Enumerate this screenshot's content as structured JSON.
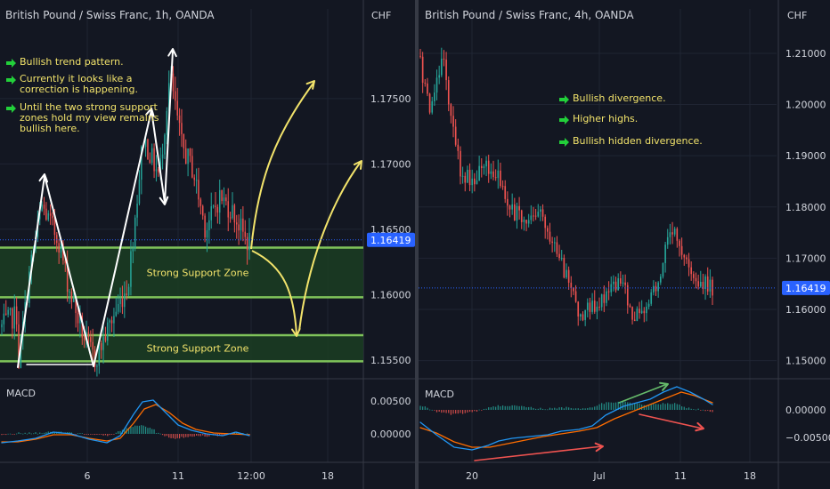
{
  "colors": {
    "background": "#131722",
    "grid": "#1f2533",
    "divider": "#363a45",
    "text": "#d1d4dc",
    "up": "#26a69a",
    "down": "#ef5350",
    "zone_line": "#7fc35a",
    "zone_fill": "#1b3b22",
    "note_text": "#f2e36b",
    "note_arrow": "#22d03a",
    "projection": "#f2e36b",
    "white_arrow": "#ffffff",
    "price_badge": "#2962ff",
    "macd": "#2196f3",
    "signal": "#ff6d00",
    "green_trend": "#66bb6a",
    "red_trend": "#ef5350"
  },
  "chart_data": [
    {
      "type": "candlestick",
      "title": "British Pound / Swiss Franc, 1h, OANDA",
      "currency_label": "CHF",
      "x_ticks": [
        "6",
        "11",
        "12:00",
        "18"
      ],
      "y_ticks": [
        1.155,
        1.16,
        1.165,
        1.17,
        1.175
      ],
      "ylim": [
        1.1537,
        1.1805
      ],
      "last_price_label": "1.16419",
      "last_price": 1.16419,
      "support_zones": [
        {
          "label": "Strong Support Zone",
          "low": 1.1598,
          "high": 1.1636
        },
        {
          "label": "Strong Support Zone",
          "low": 1.1549,
          "high": 1.1569
        }
      ],
      "notes": [
        [
          "Bullish trend pattern."
        ],
        [
          "Currently it looks like a",
          "correction is happening."
        ],
        [
          "Until the two strong support",
          "zones hold my view remains",
          "bullish here."
        ]
      ],
      "indicator": {
        "name": "MACD",
        "y_ticks": [
          0.005,
          0.0
        ],
        "y_tick_labels": [
          "0.00500",
          "0.00000"
        ]
      }
    },
    {
      "type": "candlestick",
      "title": "British Pound / Swiss Franc, 4h, OANDA",
      "currency_label": "CHF",
      "x_ticks": [
        "20",
        "Jul",
        "11",
        "18"
      ],
      "y_ticks": [
        1.15,
        1.16,
        1.17,
        1.18,
        1.19,
        1.2,
        1.21
      ],
      "ylim": [
        1.1468,
        1.2152
      ],
      "last_price_label": "1.16419",
      "last_price": 1.16419,
      "notes": [
        [
          "Bullish divergence."
        ],
        [
          "Higher highs."
        ],
        [
          "Bullish hidden divergence."
        ]
      ],
      "indicator": {
        "name": "MACD",
        "y_ticks": [
          0.0,
          -0.005
        ],
        "y_tick_labels": [
          "0.00000",
          "−0.00500"
        ]
      }
    }
  ]
}
